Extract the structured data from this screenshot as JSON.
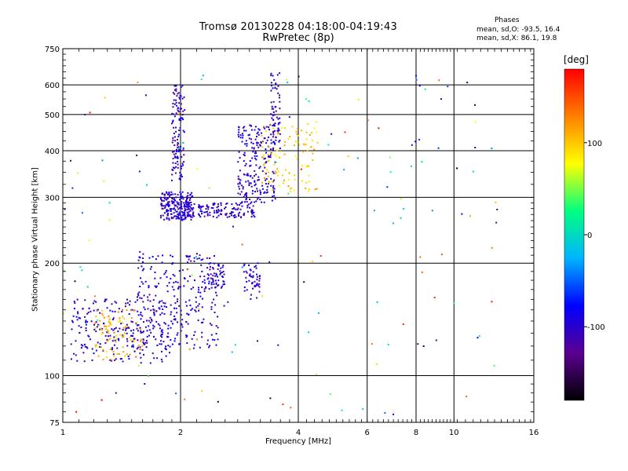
{
  "chart_data": {
    "type": "scatter",
    "title": "Tromsø 20130228 04:18:00-04:19:43",
    "subtitle": "RwPretec (8p)",
    "xlabel": "Frequency [MHz]",
    "ylabel": "Stationary phase Virtual Height [km]",
    "xscale": "log",
    "yscale": "log",
    "xlim": [
      1,
      16
    ],
    "ylim": [
      75,
      750
    ],
    "xticks": [
      1,
      2,
      4,
      6,
      8,
      10,
      16
    ],
    "yticks": [
      75,
      100,
      200,
      300,
      400,
      500,
      600,
      750
    ],
    "grid": true,
    "phases_header": "Phases",
    "phases_o": "mean, sd,O:  -93.5, 16.4",
    "phases_x": "mean, sd,X:   86.1, 19.8",
    "colorbar": {
      "unit": "[deg]",
      "range": [
        -180,
        180
      ],
      "ticks": [
        100,
        0,
        -100
      ],
      "colormap": [
        "#000000",
        "#5a0090",
        "#0000ff",
        "#00b4ff",
        "#00ff80",
        "#ffff00",
        "#ff8000",
        "#ff0000"
      ]
    },
    "clusters": [
      {
        "region": "low-frequency trace",
        "x": [
          1.05,
          1.9
        ],
        "y": [
          108,
          160
        ],
        "phase": -100,
        "count": 230
      },
      {
        "region": "low-frequency trace (yellow)",
        "x": [
          1.2,
          1.6
        ],
        "y": [
          110,
          150
        ],
        "phase": 110,
        "count": 90
      },
      {
        "region": "E-layer rise",
        "x": [
          1.55,
          2.5
        ],
        "y": [
          118,
          210
        ],
        "phase": -100,
        "count": 260
      },
      {
        "region": "F trace near 2 MHz",
        "x": [
          1.78,
          2.15
        ],
        "y": [
          260,
          310
        ],
        "phase": -100,
        "count": 200
      },
      {
        "region": "F2 trace",
        "x": [
          2.0,
          3.1
        ],
        "y": [
          265,
          290
        ],
        "phase": -100,
        "count": 150
      },
      {
        "region": "F2 cusp",
        "x": [
          2.8,
          3.5
        ],
        "y": [
          290,
          470
        ],
        "phase": -100,
        "count": 220
      },
      {
        "region": "column at 2 MHz",
        "x": [
          1.9,
          2.05
        ],
        "y": [
          330,
          600
        ],
        "phase": -100,
        "count": 120
      },
      {
        "region": "X trace",
        "x": [
          3.2,
          4.5
        ],
        "y": [
          310,
          480
        ],
        "phase": 100,
        "count": 110
      },
      {
        "region": "column at 3.5 MHz",
        "x": [
          3.4,
          3.6
        ],
        "y": [
          400,
          650
        ],
        "phase": -100,
        "count": 60
      },
      {
        "region": "mid echoes at 2.4 MHz",
        "x": [
          2.3,
          2.6
        ],
        "y": [
          170,
          200
        ],
        "phase": -100,
        "count": 60
      },
      {
        "region": "mid echoes at 3 MHz",
        "x": [
          2.9,
          3.2
        ],
        "y": [
          160,
          200
        ],
        "phase": -100,
        "count": 50
      },
      {
        "region": "scattered noise",
        "x": [
          1.0,
          13.0
        ],
        "y": [
          78,
          650
        ],
        "phase": "mixed",
        "count": 160
      }
    ]
  }
}
